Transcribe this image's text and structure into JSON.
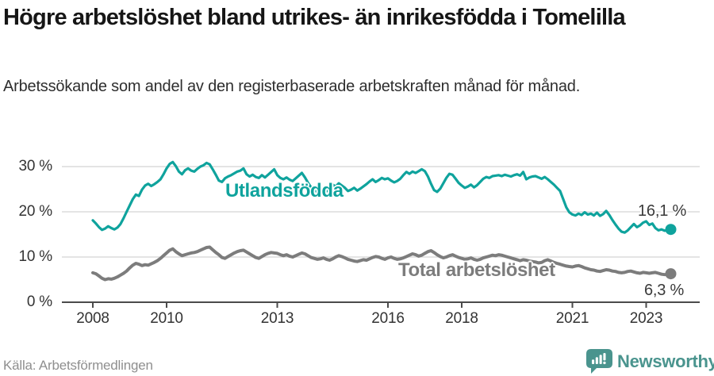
{
  "header": {
    "title": "Högre arbetslöshet bland utrikes- än inrikesfödda i Tomelilla",
    "subtitle": "Arbetssökande som andel av den registerbaserade arbetskraften månad för månad."
  },
  "footer": {
    "source": "Källa: Arbetsförmedlingen",
    "brand": "Newsworthy"
  },
  "colors": {
    "accent_teal": "#0fa39d",
    "series_gray": "#7c7c7c",
    "grid": "#dcdcdc",
    "axis": "#4b4b4b",
    "logo_teal": "#4a948e"
  },
  "chart_data": {
    "type": "line",
    "title": "Högre arbetslöshet bland utrikes- än inrikesfödda i Tomelilla",
    "subtitle": "Arbetssökande som andel av den registerbaserade arbetskraften månad för månad.",
    "unit": "%",
    "x_start": "2008-01",
    "x_end": "2023-09",
    "frequency": "monthly",
    "ylim": [
      0,
      33
    ],
    "grid": true,
    "legend_position": "inline-labels",
    "y_ticks": [
      {
        "value": 30,
        "label": "30 %"
      },
      {
        "value": 20,
        "label": "20 %"
      },
      {
        "value": 10,
        "label": "10 %"
      },
      {
        "value": 0,
        "label": "0 %"
      }
    ],
    "x_ticks": [
      {
        "year": 2008,
        "label": "2008"
      },
      {
        "year": 2010,
        "label": "2010"
      },
      {
        "year": 2013,
        "label": "2013"
      },
      {
        "year": 2016,
        "label": "2016"
      },
      {
        "year": 2018,
        "label": "2018"
      },
      {
        "year": 2021,
        "label": "2021"
      },
      {
        "year": 2023,
        "label": "2023"
      }
    ],
    "series": [
      {
        "name": "Utlandsfödda",
        "color": "#0fa39d",
        "end_label": "16,1 %",
        "last_value": 16.1,
        "values": [
          18.1,
          17.4,
          16.6,
          16.0,
          16.3,
          16.8,
          16.4,
          16.1,
          16.5,
          17.3,
          18.6,
          20.0,
          21.4,
          22.8,
          23.8,
          23.5,
          24.9,
          25.8,
          26.2,
          25.7,
          26.1,
          26.6,
          27.2,
          28.3,
          29.6,
          30.6,
          31.0,
          30.1,
          28.9,
          28.3,
          29.2,
          29.6,
          29.1,
          28.9,
          29.5,
          30.0,
          30.3,
          30.8,
          30.5,
          29.4,
          28.2,
          26.9,
          26.6,
          27.4,
          27.8,
          28.1,
          28.5,
          28.9,
          29.1,
          29.6,
          28.3,
          27.8,
          28.2,
          27.7,
          27.5,
          28.1,
          27.6,
          28.2,
          28.8,
          29.4,
          28.1,
          27.5,
          27.2,
          27.6,
          27.1,
          26.8,
          27.4,
          28.0,
          28.6,
          27.6,
          26.4,
          25.4,
          24.8,
          24.4,
          24.7,
          25.1,
          24.5,
          25.2,
          26.0,
          25.6,
          26.3,
          25.8,
          25.3,
          24.6,
          24.9,
          25.3,
          24.7,
          25.1,
          25.6,
          26.1,
          26.7,
          27.2,
          26.6,
          27.0,
          27.5,
          27.2,
          27.4,
          26.9,
          26.5,
          26.8,
          27.3,
          28.1,
          28.8,
          28.4,
          28.9,
          28.6,
          29.0,
          29.4,
          29.0,
          27.8,
          26.2,
          24.8,
          24.4,
          25.1,
          26.3,
          27.5,
          28.4,
          28.2,
          27.3,
          26.4,
          25.8,
          25.3,
          25.6,
          26.0,
          25.4,
          25.9,
          26.6,
          27.3,
          27.7,
          27.5,
          27.9,
          28.0,
          28.1,
          27.9,
          28.2,
          28.0,
          27.8,
          28.1,
          28.3,
          28.0,
          28.8,
          27.2,
          27.6,
          27.8,
          27.9,
          27.6,
          27.3,
          27.7,
          27.2,
          26.6,
          26.0,
          25.3,
          24.6,
          22.8,
          21.0,
          19.9,
          19.4,
          19.2,
          19.6,
          19.3,
          19.9,
          19.4,
          19.6,
          19.2,
          19.8,
          19.1,
          19.5,
          20.2,
          19.3,
          18.2,
          17.2,
          16.3,
          15.6,
          15.4,
          15.9,
          16.6,
          17.3,
          16.6,
          17.0,
          17.6,
          17.9,
          17.1,
          17.4,
          16.4,
          15.9,
          16.1,
          15.8,
          16.0,
          16.1
        ]
      },
      {
        "name": "Total arbetslöshet",
        "color": "#7c7c7c",
        "end_label": "6,3 %",
        "last_value": 6.3,
        "values": [
          6.5,
          6.3,
          5.8,
          5.3,
          5.0,
          5.2,
          5.1,
          5.3,
          5.6,
          6.0,
          6.4,
          6.9,
          7.6,
          8.2,
          8.6,
          8.4,
          8.1,
          8.3,
          8.2,
          8.5,
          8.8,
          9.2,
          9.7,
          10.3,
          10.9,
          11.5,
          11.8,
          11.2,
          10.7,
          10.3,
          10.5,
          10.7,
          10.9,
          11.0,
          11.2,
          11.5,
          11.8,
          12.1,
          12.2,
          11.6,
          11.0,
          10.5,
          9.9,
          9.7,
          10.1,
          10.5,
          10.9,
          11.2,
          11.4,
          11.5,
          11.1,
          10.7,
          10.3,
          9.9,
          9.7,
          10.1,
          10.5,
          10.8,
          11.0,
          10.9,
          10.8,
          10.5,
          10.3,
          10.5,
          10.2,
          10.0,
          10.3,
          10.6,
          10.9,
          10.7,
          10.3,
          9.9,
          9.7,
          9.5,
          9.6,
          9.8,
          9.5,
          9.3,
          9.6,
          10.0,
          10.3,
          10.1,
          9.8,
          9.5,
          9.3,
          9.1,
          9.0,
          9.2,
          9.4,
          9.3,
          9.6,
          9.9,
          10.1,
          10.0,
          9.7,
          9.5,
          9.8,
          10.0,
          9.7,
          9.5,
          9.6,
          9.8,
          10.1,
          10.4,
          10.7,
          10.5,
          10.2,
          10.4,
          10.8,
          11.2,
          11.4,
          11.0,
          10.5,
          10.1,
          9.8,
          10.0,
          10.3,
          10.5,
          10.2,
          9.9,
          9.7,
          9.5,
          9.6,
          9.8,
          9.5,
          9.3,
          9.5,
          9.8,
          10.0,
          10.2,
          10.4,
          10.3,
          10.5,
          10.4,
          10.2,
          10.0,
          9.8,
          9.6,
          9.4,
          9.2,
          9.4,
          9.3,
          9.1,
          9.0,
          8.9,
          8.7,
          8.8,
          9.2,
          9.4,
          9.1,
          8.8,
          8.6,
          8.4,
          8.2,
          8.0,
          7.9,
          7.8,
          8.0,
          8.1,
          7.9,
          7.6,
          7.4,
          7.2,
          7.1,
          6.9,
          6.8,
          7.0,
          7.2,
          7.1,
          6.9,
          6.8,
          6.6,
          6.5,
          6.6,
          6.8,
          6.9,
          6.7,
          6.5,
          6.4,
          6.6,
          6.5,
          6.4,
          6.5,
          6.6,
          6.4,
          6.2,
          6.1,
          6.2,
          6.3
        ]
      }
    ]
  }
}
